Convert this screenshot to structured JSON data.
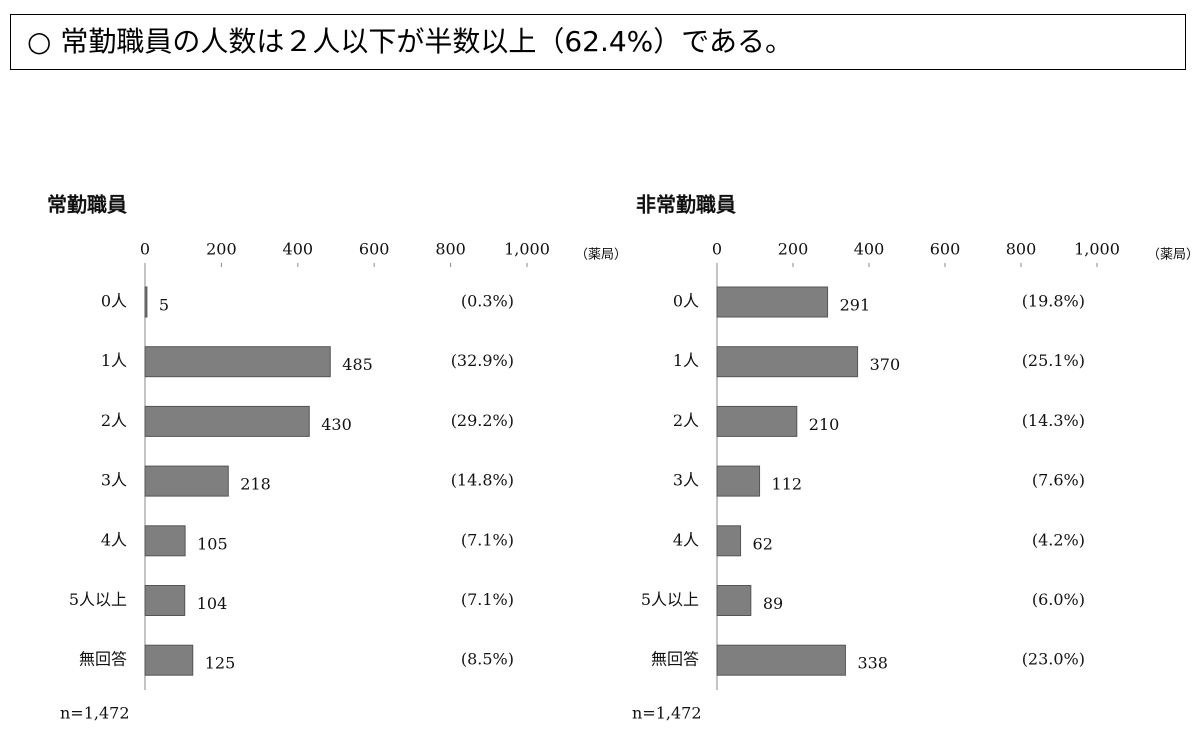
{
  "headline": "○ 常勤職員の人数は２人以下が半数以上（62.4%）である。",
  "chart_data": [
    {
      "type": "bar",
      "orientation": "horizontal",
      "title": "常勤職員",
      "unit_label": "（薬局）",
      "note": "n=1,472",
      "categories": [
        "0人",
        "1人",
        "2人",
        "3人",
        "4人",
        "5人以上",
        "無回答"
      ],
      "values": [
        5,
        485,
        430,
        218,
        105,
        104,
        125
      ],
      "share_labels": [
        "(0.3%)",
        "(32.9%)",
        "(29.2%)",
        "(14.8%)",
        "(7.1%)",
        "(7.1%)",
        "(8.5%)"
      ],
      "color": "#7f7f7f",
      "xlim": [
        0,
        1000
      ],
      "xticks": [
        0,
        200,
        400,
        600,
        800,
        {
          "value": 1000,
          "label": "1,000"
        }
      ]
    },
    {
      "type": "bar",
      "orientation": "horizontal",
      "title": "非常勤職員",
      "unit_label": "（薬局）",
      "note": "n=1,472",
      "categories": [
        "0人",
        "1人",
        "2人",
        "3人",
        "4人",
        "5人以上",
        "無回答"
      ],
      "values": [
        291,
        370,
        210,
        112,
        62,
        89,
        338
      ],
      "share_labels": [
        "(19.8%)",
        "(25.1%)",
        "(14.3%)",
        "(7.6%)",
        "(4.2%)",
        "(6.0%)",
        "(23.0%)"
      ],
      "color": "#7f7f7f",
      "xlim": [
        0,
        1000
      ],
      "xticks": [
        0,
        200,
        400,
        600,
        800,
        {
          "value": 1000,
          "label": "1,000"
        }
      ]
    }
  ]
}
